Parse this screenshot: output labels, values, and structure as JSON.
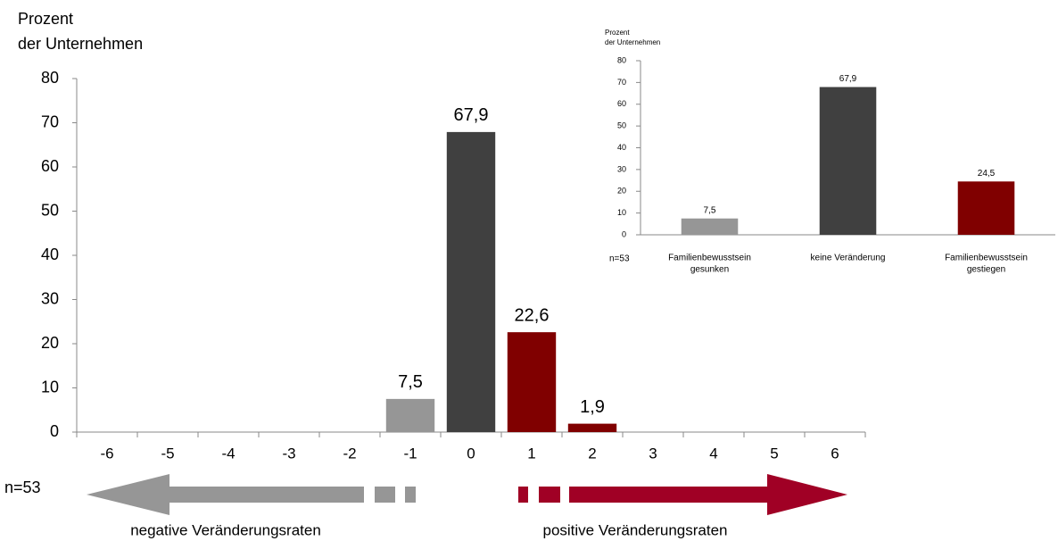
{
  "chart_data": [
    {
      "type": "bar",
      "ylabel": [
        "Prozent",
        "der Unternehmen"
      ],
      "categories": [
        "-6",
        "-5",
        "-4",
        "-3",
        "-2",
        "-1",
        "0",
        "1",
        "2",
        "3",
        "4",
        "5",
        "6"
      ],
      "values": [
        0,
        0,
        0,
        0,
        0,
        7.5,
        67.9,
        22.6,
        1.9,
        0,
        0,
        0,
        0
      ],
      "value_labels": [
        null,
        null,
        null,
        null,
        null,
        "7,5",
        "67,9",
        "22,6",
        "1,9",
        null,
        null,
        null,
        null
      ],
      "colors": [
        "#969696",
        "#969696",
        "#969696",
        "#969696",
        "#969696",
        "#969696",
        "#404040",
        "#800000",
        "#800000",
        "#800000",
        "#800000",
        "#800000",
        "#800000"
      ],
      "ylim": [
        0,
        80
      ],
      "yticks": [
        0,
        10,
        20,
        30,
        40,
        50,
        60,
        70,
        80
      ],
      "annotations": [
        "n=53",
        "negative Veränderungsraten",
        "positive Veränderungsraten"
      ]
    },
    {
      "type": "bar",
      "ylabel": [
        "Prozent",
        "der Unternehmen"
      ],
      "categories": [
        [
          "Familienbewusstsein",
          "gesunken"
        ],
        [
          "keine Veränderung"
        ],
        [
          "Familienbewusstsein",
          "gestiegen"
        ]
      ],
      "values": [
        7.5,
        67.9,
        24.5
      ],
      "value_labels": [
        "7,5",
        "67,9",
        "24,5"
      ],
      "colors": [
        "#969696",
        "#404040",
        "#800000"
      ],
      "ylim": [
        0,
        80
      ],
      "yticks": [
        0,
        10,
        20,
        30,
        40,
        50,
        60,
        70,
        80
      ],
      "annotations": [
        "n=53"
      ]
    }
  ]
}
